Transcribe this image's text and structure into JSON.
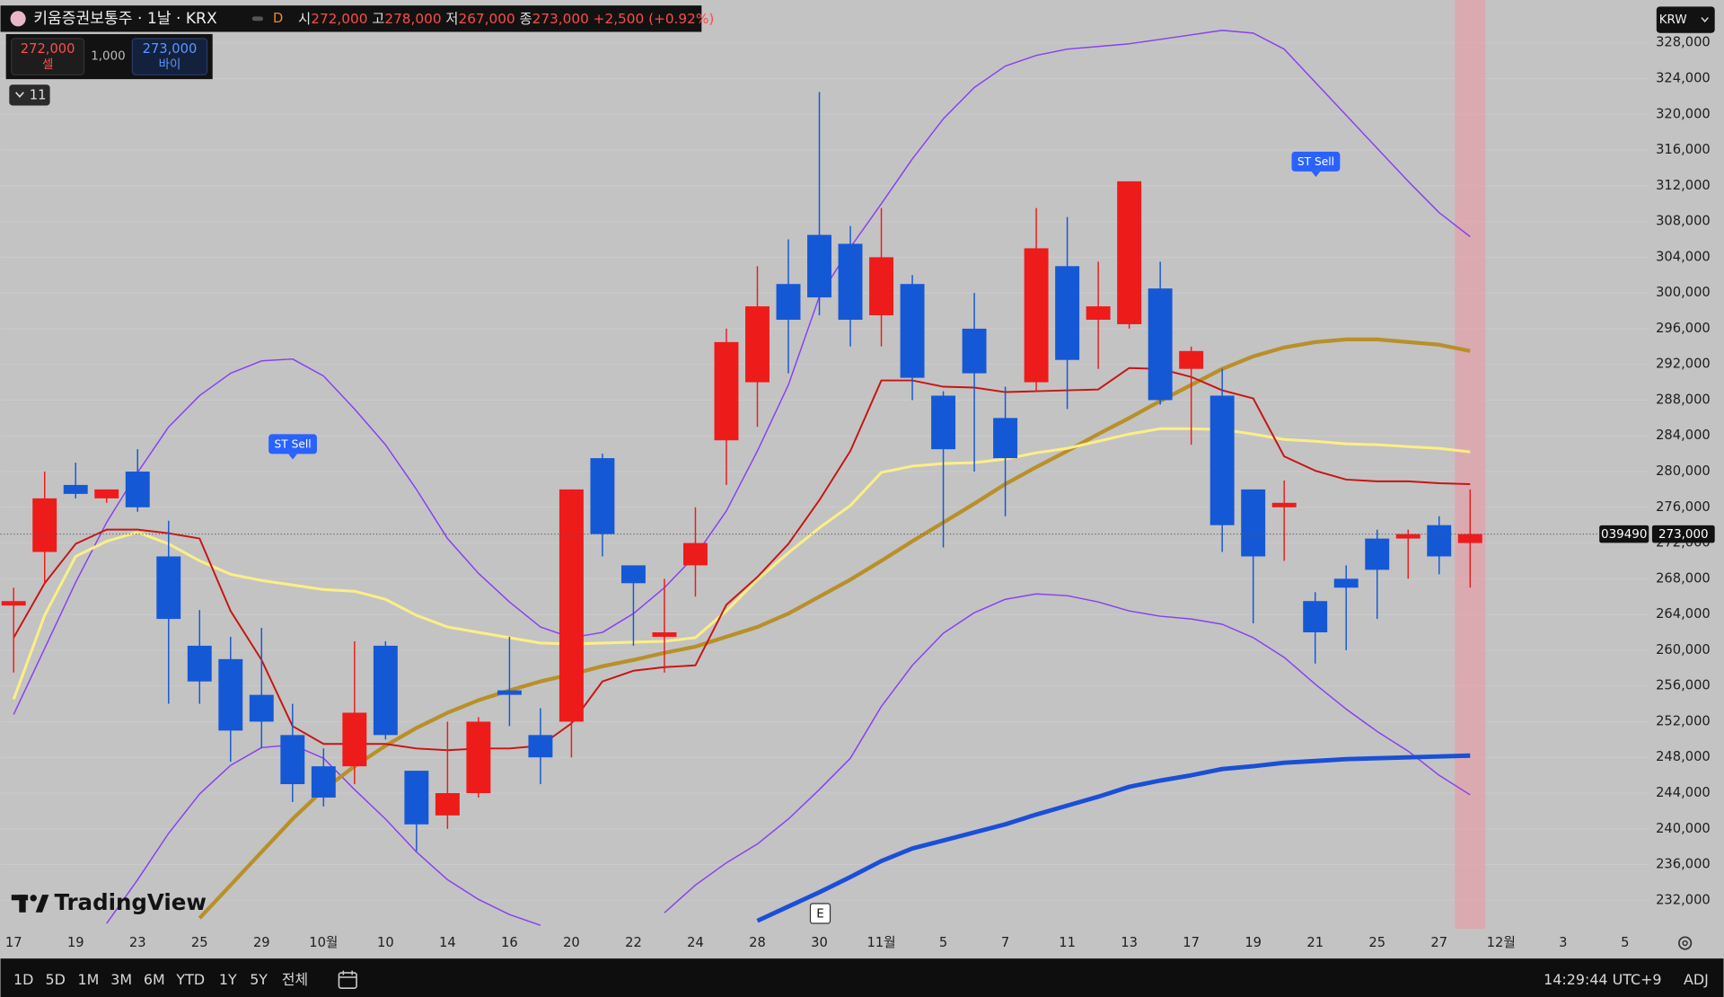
{
  "header": {
    "symbol": "키움증권보통주 · 1날 · KRX",
    "interval_flag": "D",
    "open_label": "시",
    "open": "272,000",
    "high_label": "고",
    "high": "278,000",
    "low_label": "저",
    "low": "267,000",
    "close_label": "종",
    "close": "273,000",
    "change": "+2,500 (+0.92%)"
  },
  "trade": {
    "sell_price": "272,000",
    "sell": "셀",
    "quantity": "1,000",
    "buy_price": "273,000",
    "buy": "바이"
  },
  "indicators_toggle": "11",
  "currency": "KRW",
  "symbol_code": "039490",
  "last_price_label": "273,000",
  "annotations": [
    "ST Sell",
    "ST Sell"
  ],
  "earnings": "E",
  "watermark": "TradingView",
  "toolbar": {
    "ranges": [
      "1D",
      "5D",
      "1M",
      "3M",
      "6M",
      "YTD",
      "1Y",
      "5Y",
      "전체"
    ],
    "clock": "14:29:44 UTC+9",
    "adj": "ADJ"
  },
  "chart_data": {
    "type": "candlestick",
    "categories": [
      "17",
      null,
      "19",
      null,
      "23",
      null,
      "25",
      null,
      "29",
      null,
      "10월",
      null,
      "10",
      null,
      "14",
      null,
      "16",
      null,
      "20",
      null,
      "22",
      null,
      "24",
      null,
      "28",
      null,
      "30",
      null,
      "11월",
      null,
      "5",
      null,
      "7",
      null,
      "11",
      null,
      "13",
      null,
      "17",
      null,
      "19",
      null,
      "21",
      null,
      "25",
      null,
      "27",
      null,
      "12월",
      null,
      "3",
      null,
      "5"
    ],
    "open": [
      265000,
      271000,
      278500,
      277000,
      280000,
      270500,
      260500,
      259000,
      255000,
      250500,
      247000,
      247000,
      260500,
      246500,
      241500,
      244000,
      255500,
      250500,
      252000,
      281500,
      269500,
      261500,
      269500,
      283500,
      290000,
      301000,
      306500,
      305500,
      297500,
      301000,
      288500,
      296000,
      286000,
      290000,
      303000,
      297000,
      296500,
      300500,
      291500,
      288500,
      278000,
      276000,
      265500,
      268000,
      272500,
      272500,
      274000,
      272000,
      null,
      null,
      null,
      null,
      null
    ],
    "high": [
      267000,
      280000,
      281000,
      278000,
      282500,
      274500,
      264500,
      261500,
      262500,
      254000,
      249000,
      261000,
      261000,
      246500,
      252000,
      252500,
      261500,
      253500,
      278000,
      282000,
      269500,
      268000,
      276000,
      296000,
      303000,
      306000,
      322500,
      307500,
      309500,
      302000,
      289000,
      300000,
      289500,
      309500,
      308500,
      303500,
      312500,
      303500,
      294000,
      291500,
      278000,
      279000,
      266500,
      269500,
      273500,
      273500,
      275000,
      278000,
      null,
      null,
      null,
      null,
      null
    ],
    "low": [
      257500,
      267500,
      277000,
      276500,
      275500,
      254000,
      254000,
      247500,
      249000,
      243000,
      242500,
      245000,
      250000,
      237500,
      240000,
      243500,
      251500,
      245000,
      248000,
      270500,
      260500,
      257500,
      266000,
      278500,
      285000,
      291000,
      297500,
      294000,
      294000,
      288000,
      271500,
      280000,
      275000,
      289000,
      287000,
      291500,
      296000,
      287500,
      283000,
      271000,
      263000,
      270000,
      258500,
      260000,
      263500,
      268000,
      268500,
      267000,
      null,
      null,
      null,
      null,
      null
    ],
    "close": [
      265500,
      277000,
      277500,
      278000,
      276000,
      263500,
      256500,
      251000,
      252000,
      245000,
      243500,
      253000,
      250500,
      240500,
      244000,
      252000,
      255000,
      248000,
      278000,
      273000,
      267500,
      262000,
      272000,
      294500,
      298500,
      297000,
      299500,
      297000,
      304000,
      290500,
      282500,
      291000,
      281500,
      305000,
      292500,
      298500,
      312500,
      288000,
      293500,
      274000,
      270500,
      276500,
      262000,
      267000,
      269000,
      273000,
      270500,
      273000,
      null,
      null,
      null,
      null,
      null
    ],
    "up_color": "#ee1b1b",
    "down_color": "#1558d6",
    "lines": [
      {
        "color": "#8a3ff0",
        "width": 1.2,
        "values": [
          252800,
          260200,
          267600,
          274300,
          279900,
          285000,
          288500,
          291000,
          292400,
          292600,
          290700,
          287000,
          283000,
          278000,
          272500,
          268600,
          265400,
          262600,
          261400,
          262000,
          264100,
          267000,
          270600,
          275600,
          282300,
          289700,
          299600,
          305100,
          310000,
          315000,
          319500,
          323000,
          325400,
          326600,
          327300,
          327600,
          327900,
          328400,
          328900,
          329400,
          329100,
          327300,
          323600,
          319900,
          316200,
          312500,
          309000,
          306300,
          null,
          null,
          null,
          null,
          null
        ]
      },
      {
        "color": "#8a3ff0",
        "width": 1.2,
        "values": [
          null,
          null,
          null,
          229400,
          234300,
          239500,
          243900,
          247100,
          249100,
          249400,
          247900,
          244400,
          241100,
          237400,
          234300,
          232100,
          230400,
          229200,
          null,
          null,
          null,
          230600,
          233700,
          236200,
          238300,
          241100,
          244400,
          247900,
          253700,
          258300,
          261900,
          264200,
          265700,
          266300,
          266100,
          265400,
          264400,
          263800,
          263500,
          262900,
          261400,
          259200,
          256200,
          253400,
          250900,
          248700,
          246000,
          243800,
          null,
          null,
          null,
          null,
          null
        ]
      },
      {
        "color": "#b8902a",
        "width": 3.5,
        "values": [
          null,
          null,
          null,
          null,
          null,
          null,
          230000,
          233700,
          237400,
          241100,
          244400,
          247000,
          249300,
          251300,
          253000,
          254400,
          255500,
          256500,
          257300,
          258200,
          258900,
          259700,
          260400,
          261500,
          262600,
          264100,
          266000,
          267900,
          270000,
          272200,
          274300,
          276400,
          278600,
          280500,
          282300,
          284200,
          286000,
          287900,
          289700,
          291500,
          292900,
          293900,
          294500,
          294800,
          294800,
          294500,
          294200,
          293500,
          null,
          null,
          null,
          null,
          null
        ]
      },
      {
        "color": "#1a4fd6",
        "width": 4,
        "values": [
          null,
          null,
          null,
          null,
          null,
          null,
          null,
          null,
          null,
          null,
          null,
          null,
          null,
          null,
          null,
          null,
          null,
          null,
          null,
          null,
          null,
          null,
          null,
          null,
          229700,
          231300,
          232900,
          234600,
          236400,
          237800,
          238700,
          239600,
          240500,
          241600,
          242600,
          243600,
          244700,
          245400,
          246000,
          246700,
          247000,
          247400,
          247600,
          247800,
          247900,
          248000,
          248100,
          248200,
          null,
          null,
          null,
          null,
          null
        ]
      },
      {
        "color": "#fbee86",
        "width": 2.5,
        "values": [
          254500,
          263900,
          270500,
          272200,
          273200,
          271900,
          270000,
          268500,
          267800,
          267300,
          266800,
          266600,
          265700,
          263900,
          262600,
          262000,
          261400,
          260800,
          260700,
          260800,
          260900,
          261000,
          261400,
          264400,
          267900,
          270900,
          273700,
          276200,
          279900,
          280600,
          280900,
          281000,
          281400,
          282100,
          282600,
          283400,
          284200,
          284800,
          284800,
          284700,
          284200,
          283600,
          283400,
          283100,
          283000,
          282800,
          282600,
          282200,
          null,
          null,
          null,
          null,
          null
        ]
      },
      {
        "color": "#c81414",
        "width": 1.6,
        "values": [
          261400,
          267500,
          271900,
          273500,
          273500,
          273100,
          272500,
          264400,
          258900,
          251500,
          249500,
          249500,
          249500,
          249000,
          248800,
          249000,
          249000,
          249300,
          251800,
          256500,
          257700,
          258100,
          258300,
          265100,
          268200,
          271900,
          276800,
          282300,
          290200,
          290200,
          289500,
          289400,
          288900,
          289000,
          289100,
          289200,
          291600,
          291500,
          290600,
          289100,
          288200,
          281700,
          280100,
          279100,
          278900,
          278900,
          278700,
          278600,
          null,
          null,
          null,
          null,
          null
        ]
      }
    ],
    "ylim": [
      228800,
      332800
    ],
    "yticks": [
      {
        "value": 232000,
        "label": "232,000"
      },
      {
        "value": 236000,
        "label": "236,000"
      },
      {
        "value": 240000,
        "label": "240,000"
      },
      {
        "value": 244000,
        "label": "244,000"
      },
      {
        "value": 248000,
        "label": "248,000"
      },
      {
        "value": 252000,
        "label": "252,000"
      },
      {
        "value": 256000,
        "label": "256,000"
      },
      {
        "value": 260000,
        "label": "260,000"
      },
      {
        "value": 264000,
        "label": "264,000"
      },
      {
        "value": 268000,
        "label": "268,000"
      },
      {
        "value": 272000,
        "label": "272,000"
      },
      {
        "value": 276000,
        "label": "276,000"
      },
      {
        "value": 280000,
        "label": "280,000"
      },
      {
        "value": 284000,
        "label": "284,000"
      },
      {
        "value": 288000,
        "label": "288,000"
      },
      {
        "value": 292000,
        "label": "292,000"
      },
      {
        "value": 296000,
        "label": "296,000"
      },
      {
        "value": 300000,
        "label": "300,000"
      },
      {
        "value": 304000,
        "label": "304,000"
      },
      {
        "value": 308000,
        "label": "308,000"
      },
      {
        "value": 312000,
        "label": "312,000"
      },
      {
        "value": 316000,
        "label": "316,000"
      },
      {
        "value": 320000,
        "label": "320,000"
      },
      {
        "value": 324000,
        "label": "324,000"
      },
      {
        "value": 328000,
        "label": "328,000"
      }
    ],
    "grid": true
  }
}
